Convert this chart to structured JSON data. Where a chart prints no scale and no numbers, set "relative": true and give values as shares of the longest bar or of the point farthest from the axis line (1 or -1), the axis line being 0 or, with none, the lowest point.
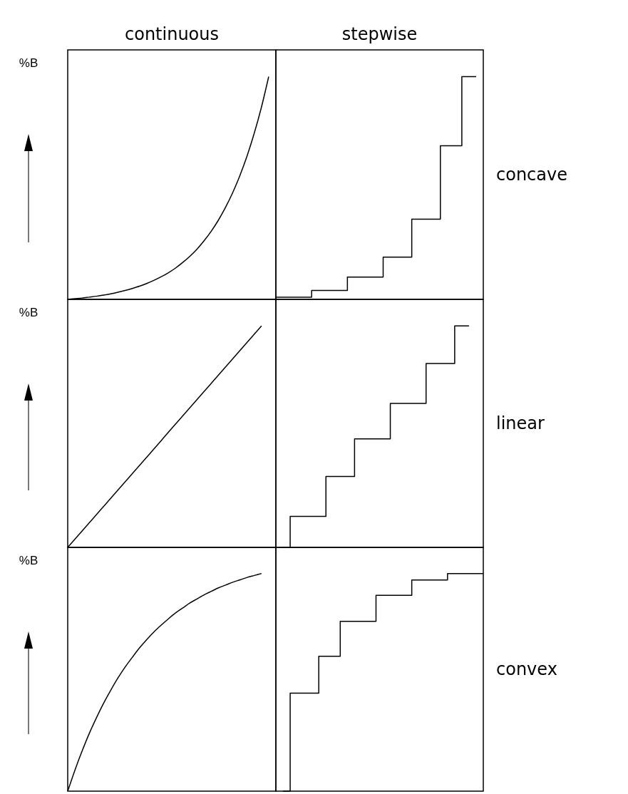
{
  "chart_data": [
    {
      "type": "line",
      "title": "continuous",
      "ylabel": "%B",
      "relative": true,
      "color": "#000000",
      "categories": [
        null,
        null,
        null,
        null,
        null,
        null,
        null,
        null,
        null,
        null,
        null,
        null,
        null,
        null,
        null,
        null,
        null,
        null,
        null,
        null,
        null,
        null,
        null,
        null,
        null,
        null,
        null,
        null,
        null,
        null
      ],
      "values": [
        0,
        0.003,
        0.006,
        0.01,
        0.014,
        0.019,
        0.025,
        0.032,
        0.04,
        0.049,
        0.059,
        0.071,
        0.085,
        0.101,
        0.119,
        0.14,
        0.165,
        0.193,
        0.225,
        0.263,
        0.306,
        0.356,
        0.414,
        0.48,
        0.557,
        0.645,
        0.747,
        0.864,
        1,
        null
      ]
    },
    {
      "type": "step",
      "title": "stepwise",
      "annotations": [
        "concave"
      ],
      "relative": true,
      "color": "#000000",
      "categories": [
        null,
        null,
        null,
        null,
        null,
        null,
        null,
        null,
        null,
        null,
        null,
        null,
        null,
        null,
        null,
        null,
        null,
        null,
        null,
        null,
        null,
        null,
        null,
        null,
        null,
        null,
        null,
        null,
        null,
        null
      ],
      "values": [
        0.01,
        0.01,
        0.01,
        0.01,
        0.01,
        0.04,
        0.04,
        0.04,
        0.04,
        0.04,
        0.1,
        0.1,
        0.1,
        0.1,
        0.1,
        0.19,
        0.19,
        0.19,
        0.19,
        0.36,
        0.36,
        0.36,
        0.36,
        0.69,
        0.69,
        0.69,
        1,
        1,
        1,
        null
      ]
    },
    {
      "type": "line",
      "ylabel": "%B",
      "relative": true,
      "color": "#000000",
      "categories": [
        null,
        null,
        null,
        null,
        null,
        null,
        null,
        null,
        null,
        null,
        null,
        null,
        null,
        null,
        null,
        null,
        null,
        null,
        null,
        null,
        null,
        null,
        null,
        null,
        null,
        null,
        null,
        null,
        null,
        null
      ],
      "values": [
        0,
        0.037,
        0.074,
        0.111,
        0.148,
        0.185,
        0.222,
        0.259,
        0.296,
        0.333,
        0.37,
        0.407,
        0.444,
        0.481,
        0.519,
        0.556,
        0.593,
        0.63,
        0.667,
        0.704,
        0.741,
        0.778,
        0.815,
        0.852,
        0.889,
        0.926,
        0.963,
        1,
        null,
        null
      ]
    },
    {
      "type": "step",
      "annotations": [
        "linear"
      ],
      "relative": true,
      "color": "#000000",
      "categories": [
        null,
        null,
        null,
        null,
        null,
        null,
        null,
        null,
        null,
        null,
        null,
        null,
        null,
        null,
        null,
        null,
        null,
        null,
        null,
        null,
        null,
        null,
        null,
        null,
        null,
        null,
        null,
        null,
        null,
        null
      ],
      "values": [
        null,
        0,
        0.14,
        0.14,
        0.14,
        0.14,
        0.14,
        0.32,
        0.32,
        0.32,
        0.32,
        0.49,
        0.49,
        0.49,
        0.49,
        0.49,
        0.65,
        0.65,
        0.65,
        0.65,
        0.65,
        0.83,
        0.83,
        0.83,
        0.83,
        1,
        1,
        1,
        null,
        null
      ]
    },
    {
      "type": "line",
      "ylabel": "%B",
      "relative": true,
      "color": "#000000",
      "categories": [
        null,
        null,
        null,
        null,
        null,
        null,
        null,
        null,
        null,
        null,
        null,
        null,
        null,
        null,
        null,
        null,
        null,
        null,
        null,
        null,
        null,
        null,
        null,
        null,
        null,
        null,
        null,
        null,
        null,
        null
      ],
      "values": [
        0,
        0.096,
        0.184,
        0.265,
        0.337,
        0.404,
        0.464,
        0.52,
        0.57,
        0.615,
        0.658,
        0.696,
        0.731,
        0.762,
        0.791,
        0.818,
        0.841,
        0.864,
        0.883,
        0.902,
        0.918,
        0.934,
        0.947,
        0.96,
        0.971,
        0.982,
        0.991,
        1,
        null,
        null
      ]
    },
    {
      "type": "step",
      "annotations": [
        "convex"
      ],
      "relative": true,
      "color": "#000000",
      "categories": [
        null,
        null,
        null,
        null,
        null,
        null,
        null,
        null,
        null,
        null,
        null,
        null,
        null,
        null,
        null,
        null,
        null,
        null,
        null,
        null,
        null,
        null,
        null,
        null,
        null,
        null,
        null,
        null,
        null,
        null
      ],
      "values": [
        null,
        0,
        0.45,
        0.45,
        0.45,
        0.45,
        0.62,
        0.62,
        0.62,
        0.78,
        0.78,
        0.78,
        0.78,
        0.78,
        0.9,
        0.9,
        0.9,
        0.9,
        0.9,
        0.97,
        0.97,
        0.97,
        0.97,
        0.97,
        1,
        1,
        1,
        1,
        1,
        1
      ]
    }
  ]
}
